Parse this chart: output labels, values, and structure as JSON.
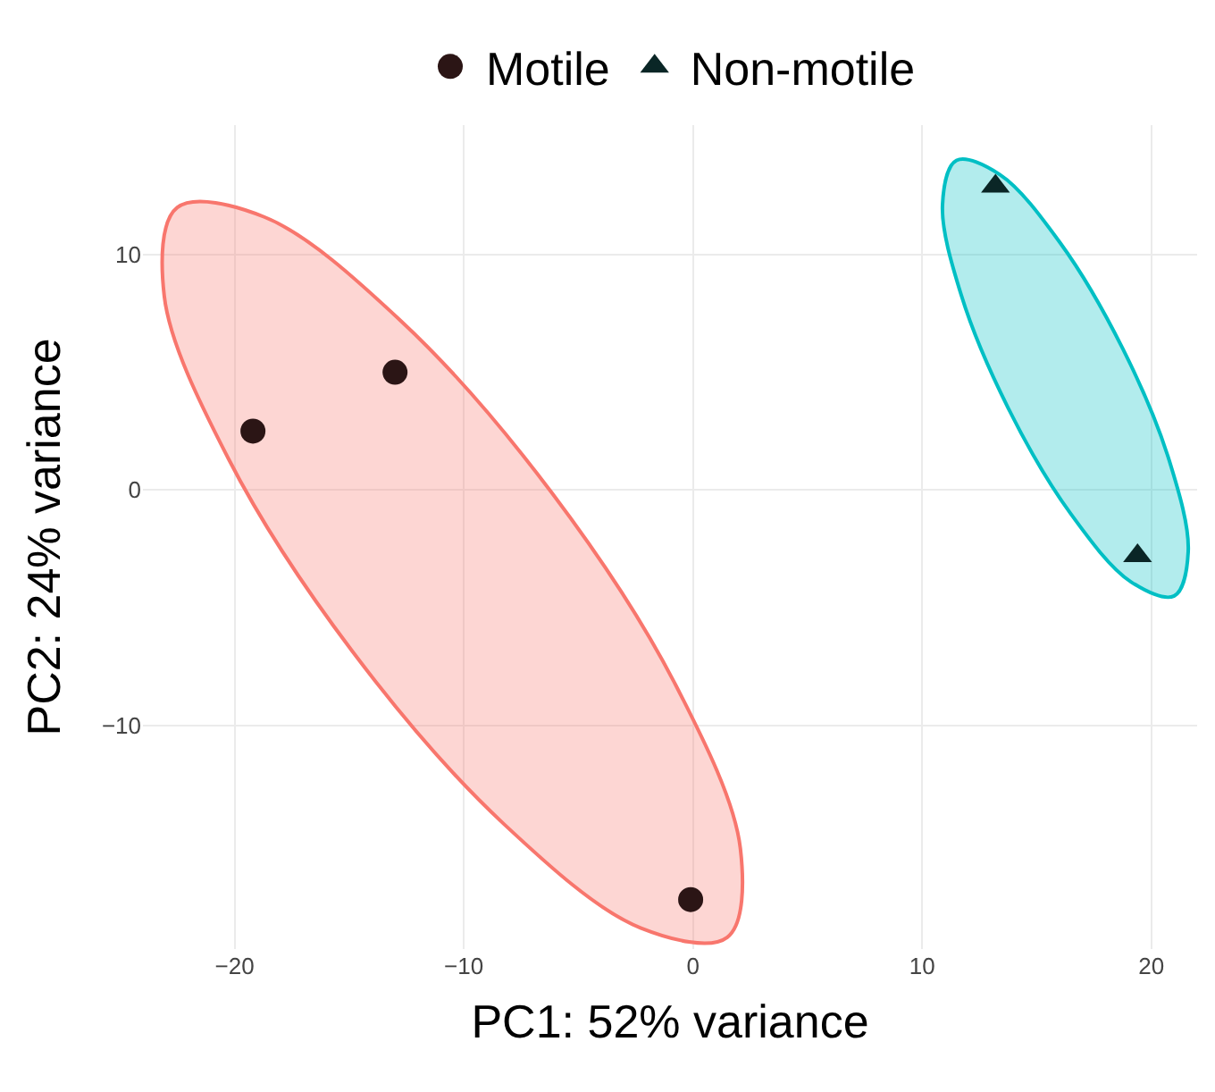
{
  "chart_data": {
    "type": "scatter",
    "xlabel": "PC1: 52% variance",
    "ylabel": "PC2: 24% variance",
    "xlim": [
      -24,
      22
    ],
    "ylim": [
      -19.5,
      15.5
    ],
    "xticks": [
      -20,
      -10,
      0,
      10,
      20
    ],
    "yticks": [
      -10,
      0,
      10
    ],
    "grid": true,
    "legend": "top",
    "series": [
      {
        "type": "area",
        "color": "#f8766d",
        "x": [
          1.5,
          2.07,
          -0.73,
          -6.15,
          -12.73,
          -18.71,
          -22.5,
          -23.07,
          -20.27,
          -14.85,
          -8.27,
          -2.29,
          1.5
        ],
        "values": [
          -19.0,
          -15.24,
          -8.33,
          -0.13,
          7.17,
          11.6,
          12.0,
          8.24,
          1.33,
          -6.87,
          -14.17,
          -18.6,
          -19.0
        ]
      },
      {
        "type": "area",
        "color": "#00bfc4",
        "x": [
          21.0,
          21.61,
          20.79,
          18.74,
          16.03,
          13.39,
          11.5,
          10.89,
          11.71,
          13.76,
          16.47,
          19.11,
          21.0
        ],
        "values": [
          -4.5,
          -2.62,
          1.23,
          6.03,
          10.49,
          13.4,
          14.0,
          12.12,
          8.27,
          3.47,
          -0.99,
          -3.9,
          -4.5
        ]
      },
      {
        "name": "Motile",
        "color": "#2b1515",
        "marker": "circle",
        "x": [
          -19.2,
          -13.0,
          -0.1
        ],
        "values": [
          2.5,
          5.0,
          -17.4
        ]
      },
      {
        "name": "Non-motile",
        "color": "#0a2626",
        "marker": "triangle",
        "x": [
          13.2,
          19.4
        ],
        "values": [
          12.9,
          -2.8
        ]
      }
    ]
  }
}
